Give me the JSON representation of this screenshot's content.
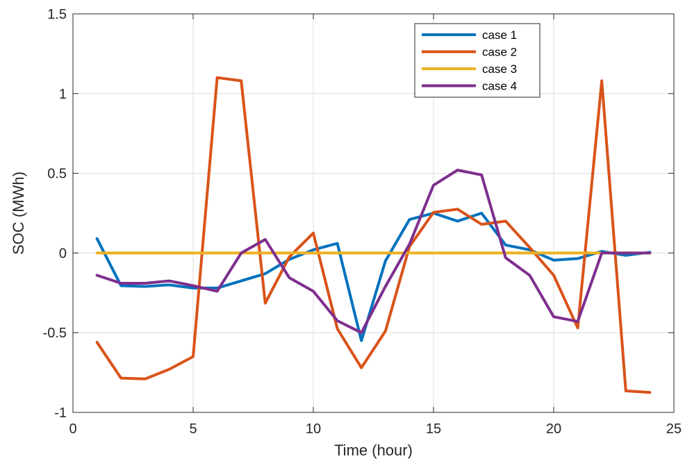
{
  "chart_data": {
    "type": "line",
    "xlabel": "Time (hour)",
    "ylabel": "SOC (MWh)",
    "xlim": [
      0,
      25
    ],
    "ylim": [
      -1,
      1.5
    ],
    "x_ticks": [
      0,
      5,
      10,
      15,
      20,
      25
    ],
    "y_ticks": [
      -1,
      -0.5,
      0,
      0.5,
      1,
      1.5
    ],
    "y_tick_labels": [
      "-1",
      "-0.5",
      "0",
      "0.5",
      "1",
      "1.5"
    ],
    "grid": true,
    "legend_position": "top-right",
    "x": [
      1,
      2,
      3,
      4,
      5,
      6,
      7,
      8,
      9,
      10,
      11,
      12,
      13,
      14,
      15,
      16,
      17,
      18,
      19,
      20,
      21,
      22,
      23,
      24
    ],
    "series": [
      {
        "name": "case 1",
        "color": "#0072BD",
        "values": [
          0.09,
          -0.205,
          -0.21,
          -0.2,
          -0.22,
          -0.22,
          -0.175,
          -0.13,
          -0.04,
          0.02,
          0.06,
          -0.55,
          -0.05,
          0.21,
          0.25,
          0.2,
          0.25,
          0.05,
          0.02,
          -0.045,
          -0.035,
          0.01,
          -0.015,
          0.005
        ]
      },
      {
        "name": "case 2",
        "color": "#D95319",
        "values": [
          -0.56,
          -0.785,
          -0.79,
          -0.73,
          -0.65,
          1.1,
          1.08,
          -0.315,
          -0.025,
          0.125,
          -0.475,
          -0.72,
          -0.49,
          0.04,
          0.255,
          0.275,
          0.18,
          0.2,
          0.035,
          -0.14,
          -0.47,
          1.08,
          -0.865,
          -0.875
        ]
      },
      {
        "name": "case 3",
        "color": "#EDB120",
        "values": [
          0,
          0,
          0,
          0,
          0,
          0,
          0,
          0,
          0,
          0,
          0,
          0,
          0,
          0,
          0,
          0,
          0,
          0,
          0,
          0,
          0,
          0,
          0,
          0
        ]
      },
      {
        "name": "case 4",
        "color": "#7E2F8E",
        "values": [
          -0.14,
          -0.19,
          -0.19,
          -0.175,
          -0.205,
          -0.24,
          0.0,
          0.085,
          -0.155,
          -0.24,
          -0.425,
          -0.5,
          -0.21,
          0.055,
          0.425,
          0.52,
          0.49,
          -0.03,
          -0.14,
          -0.4,
          -0.43,
          0.0,
          0.0,
          0.0
        ]
      }
    ]
  }
}
